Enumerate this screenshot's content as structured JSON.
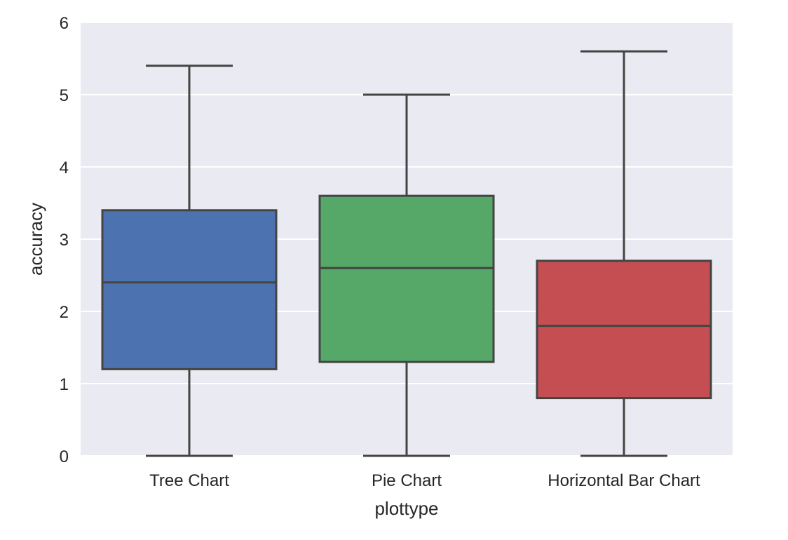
{
  "chart_data": {
    "type": "box",
    "xlabel": "plottype",
    "ylabel": "accuracy",
    "ylim": [
      0,
      6
    ],
    "yticks": [
      0,
      1,
      2,
      3,
      4,
      5,
      6
    ],
    "grid": true,
    "categories": [
      "Tree Chart",
      "Pie Chart",
      "Horizontal Bar Chart"
    ],
    "boxes": [
      {
        "category": "Tree Chart",
        "min": 0,
        "q1": 1.2,
        "median": 2.4,
        "q3": 3.4,
        "max": 5.4
      },
      {
        "category": "Pie Chart",
        "min": 0,
        "q1": 1.3,
        "median": 2.6,
        "q3": 3.6,
        "max": 5.0
      },
      {
        "category": "Horizontal Bar Chart",
        "min": 0,
        "q1": 0.8,
        "median": 1.8,
        "q3": 2.7,
        "max": 5.6
      }
    ]
  },
  "colors": {
    "background": "#eaeaf2",
    "grid": "#ffffff",
    "line": "#444444",
    "boxes": [
      "#4c72b0",
      "#55a868",
      "#c44e52"
    ]
  }
}
